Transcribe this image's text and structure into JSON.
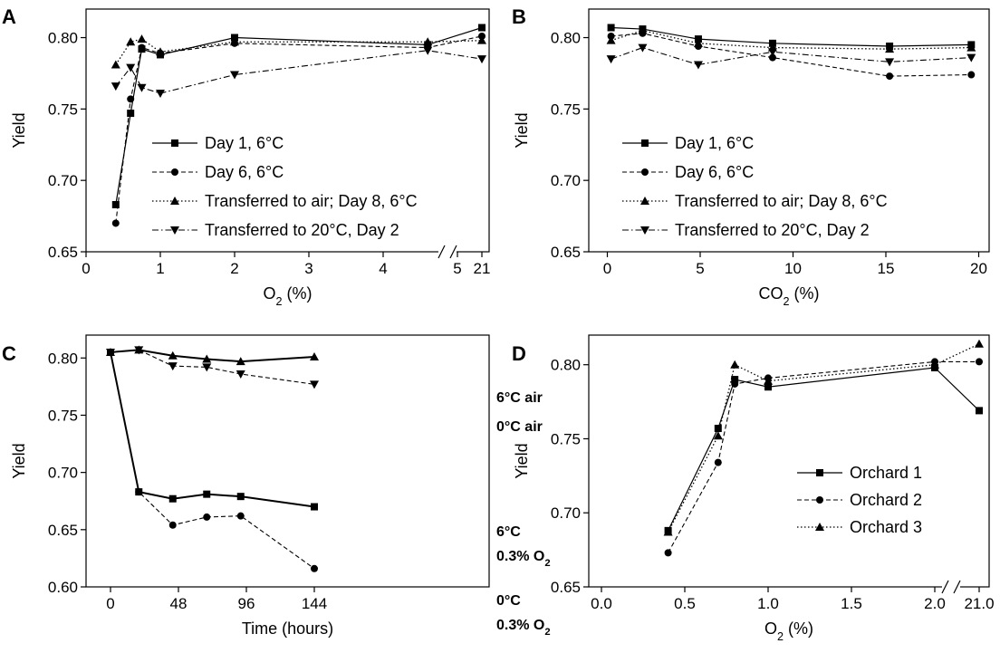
{
  "chart_data": [
    {
      "panel": "A",
      "type": "line",
      "xlabel_main": "O",
      "xlabel_sub": "2",
      "xlabel_tail": " (%)",
      "ylabel": "Yield",
      "ylim": [
        0.65,
        0.82
      ],
      "yticks": [
        0.65,
        0.7,
        0.75,
        0.8
      ],
      "ytick_labels": [
        "0.65",
        "0.70",
        "0.75",
        "0.80"
      ],
      "xticks": [
        0,
        1,
        2,
        3,
        4,
        5,
        21
      ],
      "xtick_labels": [
        "0",
        "1",
        "2",
        "3",
        "4",
        "5",
        "21"
      ],
      "x_axis_break": "between 5 and 21",
      "legend_position": "center",
      "series": [
        {
          "name": "Day 1, 6°C",
          "style": "solid",
          "marker": "square",
          "x": [
            0.4,
            0.6,
            0.75,
            1.0,
            2.0,
            4.6,
            21
          ],
          "values": [
            0.683,
            0.747,
            0.792,
            0.788,
            0.8,
            0.795,
            0.807
          ]
        },
        {
          "name": "Day 6, 6°C",
          "style": "dashed",
          "marker": "circle",
          "x": [
            0.4,
            0.6,
            0.75,
            1.0,
            2.0,
            4.6,
            21
          ],
          "values": [
            0.67,
            0.757,
            0.793,
            0.789,
            0.796,
            0.793,
            0.801
          ]
        },
        {
          "name": "Transferred to air; Day 8, 6°C",
          "style": "dotted",
          "marker": "triangle-up",
          "x": [
            0.4,
            0.6,
            0.75,
            1.0,
            2.0,
            4.6,
            21
          ],
          "values": [
            0.781,
            0.797,
            0.799,
            0.79,
            0.797,
            0.797,
            0.798
          ]
        },
        {
          "name": "Transferred to 20°C, Day 2",
          "style": "dashdot",
          "marker": "triangle-down",
          "x": [
            0.4,
            0.6,
            0.75,
            1.0,
            2.0,
            4.6,
            21
          ],
          "values": [
            0.766,
            0.779,
            0.765,
            0.761,
            0.774,
            0.791,
            0.785
          ]
        }
      ]
    },
    {
      "panel": "B",
      "type": "line",
      "xlabel_main": "CO",
      "xlabel_sub": "2",
      "xlabel_tail": " (%)",
      "ylabel": "Yield",
      "xlim": [
        -1,
        21
      ],
      "ylim": [
        0.65,
        0.82
      ],
      "yticks": [
        0.65,
        0.7,
        0.75,
        0.8
      ],
      "ytick_labels": [
        "0.65",
        "0.70",
        "0.75",
        "0.80"
      ],
      "xticks": [
        0,
        5,
        10,
        15,
        20
      ],
      "xtick_labels": [
        "0",
        "5",
        "10",
        "15",
        "20"
      ],
      "legend_position": "center",
      "series": [
        {
          "name": "Day 1, 6°C",
          "style": "solid",
          "marker": "square",
          "x": [
            0.2,
            1.9,
            4.9,
            8.9,
            15.2,
            19.6
          ],
          "values": [
            0.807,
            0.806,
            0.799,
            0.796,
            0.794,
            0.795
          ]
        },
        {
          "name": "Day 6, 6°C",
          "style": "dashed",
          "marker": "circle",
          "x": [
            0.2,
            1.9,
            4.9,
            8.9,
            15.2,
            19.6
          ],
          "values": [
            0.801,
            0.803,
            0.794,
            0.786,
            0.773,
            0.774
          ]
        },
        {
          "name": "Transferred to air; Day 8, 6°C",
          "style": "dotted",
          "marker": "triangle-up",
          "x": [
            0.2,
            1.9,
            4.9,
            8.9,
            15.2,
            19.6
          ],
          "values": [
            0.798,
            0.805,
            0.796,
            0.793,
            0.792,
            0.793
          ]
        },
        {
          "name": "Transferred to 20°C, Day 2",
          "style": "dashdot",
          "marker": "triangle-down",
          "x": [
            0.2,
            1.9,
            4.9,
            8.9,
            15.2,
            19.6
          ],
          "values": [
            0.785,
            0.793,
            0.781,
            0.79,
            0.783,
            0.786
          ]
        }
      ]
    },
    {
      "panel": "C",
      "type": "line",
      "xlabel": "Time (hours)",
      "ylabel": "Yield",
      "xlim": [
        -12,
        180
      ],
      "ylim": [
        0.6,
        0.82
      ],
      "yticks": [
        0.6,
        0.65,
        0.7,
        0.75,
        0.8
      ],
      "ytick_labels": [
        "0.60",
        "0.65",
        "0.70",
        "0.75",
        "0.80"
      ],
      "xticks": [
        0,
        48,
        96,
        144
      ],
      "xtick_labels": [
        "0",
        "48",
        "96",
        "144"
      ],
      "series": [
        {
          "label_lines": [
            "6°C air"
          ],
          "style": "thick",
          "marker": "triangle-up",
          "x": [
            0,
            20,
            44,
            68,
            92,
            144
          ],
          "values": [
            0.805,
            0.807,
            0.802,
            0.799,
            0.797,
            0.801
          ]
        },
        {
          "label_lines": [
            "0°C air"
          ],
          "style": "dashed",
          "marker": "triangle-down",
          "x": [
            0,
            20,
            44,
            68,
            92,
            144
          ],
          "values": [
            0.805,
            0.807,
            0.793,
            0.792,
            0.786,
            0.777
          ]
        },
        {
          "label_lines": [
            "6°C",
            "0.3% O",
            "2"
          ],
          "style": "thick",
          "marker": "square",
          "x": [
            0,
            20,
            44,
            68,
            92,
            144
          ],
          "values": [
            0.805,
            0.683,
            0.677,
            0.681,
            0.679,
            0.67
          ]
        },
        {
          "label_lines": [
            "0°C",
            "0.3% O",
            "2"
          ],
          "style": "dashed",
          "marker": "circle",
          "x": [
            0,
            20,
            44,
            68,
            92,
            144
          ],
          "values": [
            0.805,
            0.683,
            0.654,
            0.661,
            0.662,
            0.616
          ]
        }
      ]
    },
    {
      "panel": "D",
      "type": "line",
      "xlabel_main": "O",
      "xlabel_sub": "2",
      "xlabel_tail": " (%)",
      "ylabel": "Yield",
      "ylim": [
        0.65,
        0.82
      ],
      "yticks": [
        0.65,
        0.7,
        0.75,
        0.8
      ],
      "ytick_labels": [
        "0.65",
        "0.70",
        "0.75",
        "0.80"
      ],
      "xticks": [
        0.0,
        0.5,
        1.0,
        1.5,
        2.0,
        21.0
      ],
      "xtick_labels": [
        "0.0",
        "0.5",
        "1.0",
        "1.5",
        "2.0",
        "21.0"
      ],
      "x_axis_break": "between 2.0 and 21.0",
      "legend_position": "center-right",
      "series": [
        {
          "name": "Orchard 1",
          "style": "solid",
          "marker": "square",
          "x": [
            0.4,
            0.7,
            0.8,
            1.0,
            2.0,
            21.0
          ],
          "values": [
            0.688,
            0.757,
            0.79,
            0.785,
            0.798,
            0.769
          ]
        },
        {
          "name": "Orchard 2",
          "style": "dashed",
          "marker": "circle",
          "x": [
            0.4,
            0.7,
            0.8,
            1.0,
            2.0,
            21.0
          ],
          "values": [
            0.673,
            0.734,
            0.787,
            0.791,
            0.802,
            0.802
          ]
        },
        {
          "name": "Orchard 3",
          "style": "dotted",
          "marker": "triangle-up",
          "x": [
            0.4,
            0.7,
            0.8,
            1.0,
            2.0,
            21.0
          ],
          "values": [
            0.687,
            0.752,
            0.8,
            0.789,
            0.8,
            0.814
          ]
        }
      ]
    }
  ]
}
